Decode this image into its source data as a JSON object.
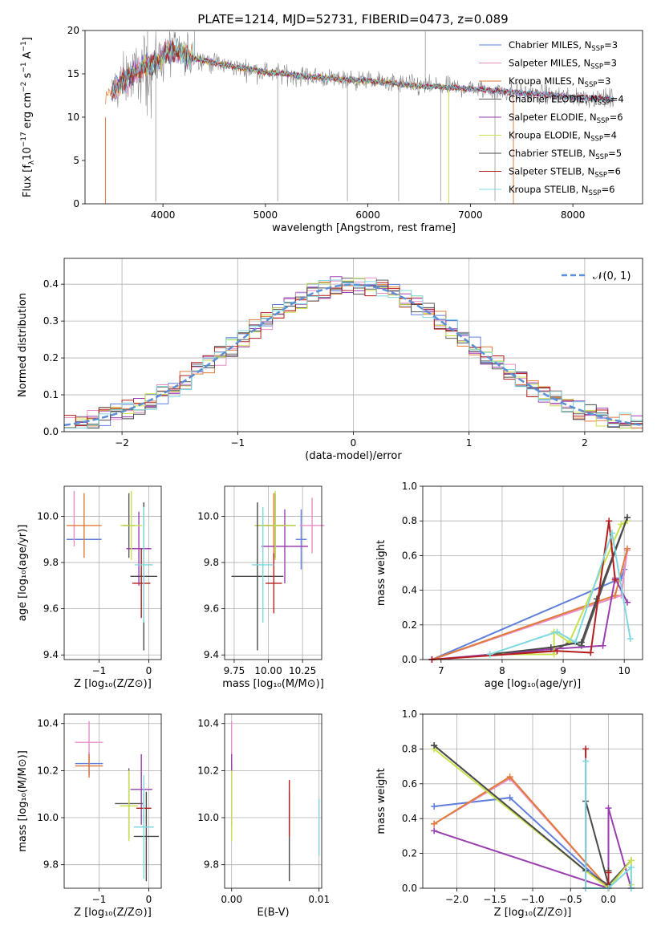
{
  "title": "PLATE=1214, MJD=52731, FIBERID=0473, z=0.089",
  "colors": {
    "c1": "#5f7fdb",
    "c2": "#e98ec8",
    "c3": "#e07b39",
    "c4": "#5a5a5a",
    "c5": "#9b3fb0",
    "c6": "#c9e04c",
    "c7": "#4a4a4a",
    "c8": "#b41e1e",
    "c9": "#7fd8e0",
    "gray": "#888888",
    "norm": "#5b8fd6"
  },
  "legend": [
    {
      "base": "Chabrier MILES, N",
      "sub": "SSP",
      "tail": "=3",
      "color": "#5f7fdb"
    },
    {
      "base": "Salpeter MILES, N",
      "sub": "SSP",
      "tail": "=3",
      "color": "#e98ec8"
    },
    {
      "base": "Kroupa MILES, N",
      "sub": "SSP",
      "tail": "=3",
      "color": "#e07b39"
    },
    {
      "base": "Chabrier ELODIE, N",
      "sub": "SSP",
      "tail": "=4",
      "color": "#5a5a5a"
    },
    {
      "base": "Salpeter ELODIE, N",
      "sub": "SSP",
      "tail": "=6",
      "color": "#9b3fb0"
    },
    {
      "base": "Kroupa ELODIE, N",
      "sub": "SSP",
      "tail": "=4",
      "color": "#c9e04c"
    },
    {
      "base": "Chabrier STELIB, N",
      "sub": "SSP",
      "tail": "=5",
      "color": "#4a4a4a"
    },
    {
      "base": "Salpeter STELIB, N",
      "sub": "SSP",
      "tail": "=6",
      "color": "#b41e1e"
    },
    {
      "base": "Kroupa STELIB, N",
      "sub": "SSP",
      "tail": "=6",
      "color": "#7fd8e0"
    }
  ],
  "chart_data": [
    {
      "type": "line",
      "xlabel": "wavelength [Angstrom, rest frame]",
      "ylabel": "Flux [fλ10⁻¹⁷ erg cm⁻² s⁻¹ A⁻¹]",
      "ylabel_parts": {
        "a": "Flux [f",
        "b": "λ",
        "c": "10",
        "d": "−17",
        "e": " erg cm",
        "f": "−2",
        "g": " s",
        "h": "−1",
        "i": " A",
        "j": "−1",
        "k": "]"
      },
      "xlim": [
        3240,
        8680
      ],
      "ylim": [
        0,
        20
      ],
      "xticks": [
        "4000",
        "5000",
        "6000",
        "7000",
        "8000"
      ],
      "yticks": [
        "0",
        "5",
        "10",
        "15",
        "20"
      ],
      "xtick_values": [
        4000,
        5000,
        6000,
        7000,
        8000
      ],
      "ytick_values": [
        0,
        5,
        10,
        15,
        20
      ],
      "continuum": {
        "x": [
          3500,
          3600,
          3800,
          3950,
          4050,
          4300,
          4600,
          5000,
          5500,
          6000,
          6500,
          7000,
          7500,
          8000,
          8400
        ],
        "y": [
          12.8,
          14.0,
          15.8,
          16.5,
          17.8,
          16.8,
          16.0,
          15.2,
          14.6,
          14.2,
          13.6,
          13.3,
          12.8,
          12.3,
          12.1
        ]
      }
    },
    {
      "type": "bar",
      "xlabel": "(data-model)/error",
      "ylabel": "Normed distribution",
      "xlim": [
        -2.5,
        2.5
      ],
      "ylim": [
        0,
        0.47
      ],
      "xticks": [
        "−2",
        "−1",
        "0",
        "1",
        "2"
      ],
      "yticks": [
        "0.0",
        "0.1",
        "0.2",
        "0.3",
        "0.4"
      ],
      "xtick_values": [
        -2,
        -1,
        0,
        1,
        2
      ],
      "ytick_values": [
        0,
        0.1,
        0.2,
        0.3,
        0.4
      ],
      "legend": "𝒩(0, 1)",
      "bin_width": 0.1
    },
    {
      "type": "scatter",
      "xlabel": "Z [log₁₀(Z/Z⊙)]",
      "ylabel": "age  [log₁₀(age/yr)]",
      "xlim": [
        -1.7,
        0.25
      ],
      "ylim": [
        9.38,
        10.13
      ],
      "xticks": [
        "−1",
        "0"
      ],
      "yticks": [
        "9.4",
        "9.6",
        "9.8",
        "10.0"
      ],
      "xtick_values": [
        -1,
        0
      ],
      "ytick_values": [
        9.4,
        9.6,
        9.8,
        10.0
      ],
      "points": [
        {
          "x": -1.3,
          "y": 9.9,
          "xe": 0.35,
          "ye": 0.0,
          "c": "#5f7fdb"
        },
        {
          "x": -1.5,
          "y": 9.99,
          "xe": 0.0,
          "ye": 0.12,
          "c": "#e98ec8"
        },
        {
          "x": -1.3,
          "y": 9.96,
          "xe": 0.35,
          "ye": 0.14,
          "c": "#e07b39"
        },
        {
          "x": -0.4,
          "y": 9.96,
          "xe": 0.12,
          "ye": 0.14,
          "c": "#5a5a5a"
        },
        {
          "x": -0.2,
          "y": 9.86,
          "xe": 0.25,
          "ye": 0.16,
          "c": "#9b3fb0"
        },
        {
          "x": -0.35,
          "y": 9.96,
          "xe": 0.22,
          "ye": 0.15,
          "c": "#c9e04c"
        },
        {
          "x": -0.1,
          "y": 9.74,
          "xe": 0.27,
          "ye": 0.32,
          "c": "#4a4a4a"
        },
        {
          "x": -0.15,
          "y": 9.71,
          "xe": 0.18,
          "ye": 0.15,
          "c": "#b41e1e"
        },
        {
          "x": -0.1,
          "y": 9.79,
          "xe": 0.18,
          "ye": 0.25,
          "c": "#7fd8e0"
        }
      ]
    },
    {
      "type": "scatter",
      "xlabel": "mass [log₁₀(M/M⊙)]",
      "ylabel": "",
      "xlim": [
        9.68,
        10.39
      ],
      "ylim": [
        9.38,
        10.13
      ],
      "xticks": [
        "9.75",
        "10.00",
        "10.25"
      ],
      "yticks": [
        "9.4",
        "9.6",
        "9.8",
        "10.0"
      ],
      "xtick_values": [
        9.75,
        10.0,
        10.25
      ],
      "ytick_values": [
        9.4,
        9.6,
        9.8,
        10.0
      ],
      "points": [
        {
          "x": 10.24,
          "y": 9.9,
          "xe": 0.04,
          "ye": 0.13,
          "c": "#5f7fdb"
        },
        {
          "x": 10.32,
          "y": 9.96,
          "xe": 0.09,
          "ye": 0.12,
          "c": "#e98ec8"
        },
        {
          "x": 10.04,
          "y": 9.96,
          "xe": 0.08,
          "ye": 0.14,
          "c": "#e07b39"
        },
        {
          "x": 10.05,
          "y": 9.96,
          "xe": 0.15,
          "ye": 0.14,
          "c": "#5a5a5a"
        },
        {
          "x": 10.12,
          "y": 9.87,
          "xe": 0.17,
          "ye": 0.16,
          "c": "#9b3fb0"
        },
        {
          "x": 10.05,
          "y": 9.96,
          "xe": 0.15,
          "ye": 0.15,
          "c": "#c9e04c"
        },
        {
          "x": 9.92,
          "y": 9.74,
          "xe": 0.19,
          "ye": 0.32,
          "c": "#4a4a4a"
        },
        {
          "x": 10.04,
          "y": 9.71,
          "xe": 0.06,
          "ye": 0.13,
          "c": "#b41e1e"
        },
        {
          "x": 9.96,
          "y": 9.79,
          "xe": 0.08,
          "ye": 0.25,
          "c": "#7fd8e0"
        }
      ]
    },
    {
      "type": "line",
      "xlabel": "age  [log₁₀(age/yr)]",
      "ylabel": "mass weight",
      "xlim": [
        6.7,
        10.3
      ],
      "ylim": [
        0,
        1.0
      ],
      "xticks": [
        "7",
        "8",
        "9",
        "10"
      ],
      "yticks": [
        "0.0",
        "0.2",
        "0.4",
        "0.6",
        "0.8",
        "1.0"
      ],
      "xtick_values": [
        7,
        8,
        9,
        10
      ],
      "ytick_values": [
        0,
        0.2,
        0.4,
        0.6,
        0.8,
        1.0
      ],
      "series": [
        {
          "c": "#5f7fdb",
          "x": [
            6.85,
            9.95,
            10.0
          ],
          "y": [
            0.0,
            0.47,
            0.52
          ]
        },
        {
          "c": "#e98ec8",
          "x": [
            6.85,
            9.95,
            10.05
          ],
          "y": [
            0.0,
            0.37,
            0.63
          ]
        },
        {
          "c": "#e07b39",
          "x": [
            6.85,
            9.85,
            10.05
          ],
          "y": [
            0.0,
            0.37,
            0.64
          ]
        },
        {
          "c": "#5a5a5a",
          "x": [
            7.8,
            8.85,
            9.1,
            9.3,
            10.05
          ],
          "y": [
            0.03,
            0.05,
            0.1,
            0.08,
            0.82
          ]
        },
        {
          "c": "#9b3fb0",
          "x": [
            6.85,
            8.8,
            9.65,
            9.85,
            10.05
          ],
          "y": [
            0.0,
            0.06,
            0.08,
            0.47,
            0.33
          ]
        },
        {
          "c": "#c9e04c",
          "x": [
            7.8,
            8.85,
            8.85,
            9.1,
            9.95,
            10.05
          ],
          "y": [
            0.03,
            0.03,
            0.16,
            0.1,
            0.78,
            0.8
          ]
        },
        {
          "c": "#4a4a4a",
          "x": [
            7.8,
            8.8,
            9.3,
            9.55,
            10.05
          ],
          "y": [
            0.03,
            0.07,
            0.1,
            0.35,
            0.82
          ]
        },
        {
          "c": "#b41e1e",
          "x": [
            6.85,
            8.9,
            9.45,
            9.75,
            9.85
          ],
          "y": [
            0.0,
            0.05,
            0.04,
            0.8,
            0.46
          ]
        },
        {
          "c": "#7fd8e0",
          "x": [
            7.8,
            8.9,
            9.2,
            9.8,
            10.1
          ],
          "y": [
            0.03,
            0.16,
            0.1,
            0.73,
            0.12
          ]
        }
      ]
    },
    {
      "type": "scatter",
      "xlabel": "Z [log₁₀(Z/Z⊙)]",
      "ylabel": "mass [log₁₀(M/M⊙)]",
      "xlim": [
        -1.7,
        0.25
      ],
      "ylim": [
        9.7,
        10.44
      ],
      "xticks": [
        "−1",
        "0"
      ],
      "yticks": [
        "9.8",
        "10.0",
        "10.2",
        "10.4"
      ],
      "xtick_values": [
        -1,
        0
      ],
      "ytick_values": [
        9.8,
        10.0,
        10.2,
        10.4
      ],
      "points": [
        {
          "x": -1.2,
          "y": 10.23,
          "xe": 0.28,
          "ye": 0.05,
          "c": "#5f7fdb"
        },
        {
          "x": -1.2,
          "y": 10.32,
          "xe": 0.28,
          "ye": 0.09,
          "c": "#e98ec8"
        },
        {
          "x": -1.2,
          "y": 10.22,
          "xe": 0.28,
          "ye": 0.05,
          "c": "#e07b39"
        },
        {
          "x": -0.4,
          "y": 10.06,
          "xe": 0.28,
          "ye": 0.15,
          "c": "#5a5a5a"
        },
        {
          "x": -0.15,
          "y": 10.12,
          "xe": 0.22,
          "ye": 0.15,
          "c": "#9b3fb0"
        },
        {
          "x": -0.4,
          "y": 10.05,
          "xe": 0.18,
          "ye": 0.15,
          "c": "#c9e04c"
        },
        {
          "x": -0.05,
          "y": 9.92,
          "xe": 0.25,
          "ye": 0.19,
          "c": "#4a4a4a"
        },
        {
          "x": -0.1,
          "y": 10.04,
          "xe": 0.15,
          "ye": 0.06,
          "c": "#b41e1e"
        },
        {
          "x": -0.1,
          "y": 9.96,
          "xe": 0.2,
          "ye": 0.22,
          "c": "#7fd8e0"
        }
      ]
    },
    {
      "type": "scatter",
      "xlabel": "E(B-V)",
      "ylabel": "",
      "xlim": [
        -0.0008,
        0.0103
      ],
      "ylim": [
        9.7,
        10.44
      ],
      "xticks": [
        "0.00",
        "0.01"
      ],
      "yticks": [
        "9.8",
        "10.0",
        "10.2",
        "10.4"
      ],
      "xtick_values": [
        0.0,
        0.01
      ],
      "ytick_values": [
        9.8,
        10.0,
        10.2,
        10.4
      ],
      "points": [
        {
          "x": 0.0,
          "y": 10.23,
          "xe": 0,
          "ye": 0.05,
          "c": "#5f7fdb"
        },
        {
          "x": 0.0,
          "y": 10.32,
          "xe": 0,
          "ye": 0.09,
          "c": "#e98ec8"
        },
        {
          "x": 0.0,
          "y": 10.22,
          "xe": 0,
          "ye": 0.05,
          "c": "#e07b39"
        },
        {
          "x": 0.0,
          "y": 10.12,
          "xe": 0,
          "ye": 0.15,
          "c": "#9b3fb0"
        },
        {
          "x": 0.0,
          "y": 10.05,
          "xe": 0,
          "ye": 0.15,
          "c": "#c9e04c"
        },
        {
          "x": 0.0066,
          "y": 9.92,
          "xe": 0,
          "ye": 0.19,
          "c": "#4a4a4a"
        },
        {
          "x": 0.0066,
          "y": 10.04,
          "xe": 0,
          "ye": 0.12,
          "c": "#b41e1e"
        },
        {
          "x": 0.01,
          "y": 9.96,
          "xe": 0,
          "ye": 0.12,
          "c": "#7fd8e0"
        }
      ]
    },
    {
      "type": "line",
      "xlabel": "Z [log₁₀(Z/Z⊙)]",
      "ylabel": "mass weight",
      "xlim": [
        -2.45,
        0.45
      ],
      "ylim": [
        0,
        1.0
      ],
      "xticks": [
        "−2.0",
        "−1.5",
        "−1.0",
        "−0.5",
        "0.0"
      ],
      "yticks": [
        "0.0",
        "0.2",
        "0.4",
        "0.6",
        "0.8",
        "1.0"
      ],
      "xtick_values": [
        -2.0,
        -1.5,
        -1.0,
        -0.5,
        0.0
      ],
      "ytick_values": [
        0,
        0.2,
        0.4,
        0.6,
        0.8,
        1.0
      ],
      "series": [
        {
          "c": "#5f7fdb",
          "x": [
            -2.3,
            -1.3,
            0.0
          ],
          "y": [
            0.47,
            0.52,
            0.0
          ]
        },
        {
          "c": "#e98ec8",
          "x": [
            -2.3,
            -1.3,
            0.0
          ],
          "y": [
            0.37,
            0.63,
            0.0
          ]
        },
        {
          "c": "#e07b39",
          "x": [
            -2.3,
            -1.3,
            0.0
          ],
          "y": [
            0.37,
            0.64,
            0.0
          ]
        },
        {
          "c": "#5a5a5a",
          "x": [
            -2.3,
            -0.3,
            0.0,
            0.3
          ],
          "y": [
            0.82,
            0.1,
            0.02,
            0.16
          ]
        },
        {
          "c": "#9b3fb0",
          "x": [
            -2.3,
            0.0,
            0.0,
            0.3
          ],
          "y": [
            0.33,
            0.0,
            0.46,
            0.0
          ]
        },
        {
          "c": "#c9e04c",
          "x": [
            -2.3,
            -0.3,
            0.0,
            0.3,
            0.3
          ],
          "y": [
            0.8,
            0.1,
            0.0,
            0.16,
            0.02
          ]
        },
        {
          "c": "#4a4a4a",
          "x": [
            -2.3,
            -0.3,
            -0.3,
            0.0,
            0.0
          ],
          "y": [
            0.82,
            0.1,
            0.5,
            0.02,
            0.1
          ]
        },
        {
          "c": "#b41e1e",
          "x": [
            -0.3,
            -0.3,
            0.0,
            0.0
          ],
          "y": [
            0.8,
            0.0,
            0.0,
            0.09
          ]
        },
        {
          "c": "#7fd8e0",
          "x": [
            -0.3,
            -0.3,
            0.0,
            0.3,
            0.3
          ],
          "y": [
            0.73,
            0.0,
            0.0,
            0.12,
            0.0
          ]
        }
      ]
    }
  ]
}
